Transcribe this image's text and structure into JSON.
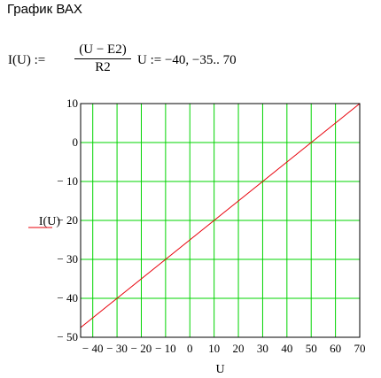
{
  "heading": "График ВАХ",
  "formula": {
    "lhs": "I(U) :=",
    "numerator": "(U − E2)",
    "denominator": "R2",
    "range": "U := −40, −35.. 70"
  },
  "chart_data": {
    "type": "line",
    "xlabel": "U",
    "ylabel": "I(U)",
    "xlim": [
      -45,
      70
    ],
    "ylim": [
      -50,
      10
    ],
    "x_ticks": [
      -40,
      -30,
      -20,
      -10,
      0,
      10,
      20,
      30,
      40,
      50,
      60,
      70
    ],
    "y_ticks": [
      -50,
      -40,
      -30,
      -20,
      -10,
      0,
      10
    ],
    "x_tick_labels": [
      "− 40",
      "− 30",
      "− 20",
      "− 10",
      "0",
      "10",
      "20",
      "30",
      "40",
      "50",
      "60",
      "70"
    ],
    "y_tick_labels": [
      "− 50",
      "− 40",
      "− 30",
      "− 20",
      "− 10",
      "0",
      "10"
    ],
    "grid": true,
    "series": [
      {
        "name": "I(U)",
        "x": [
          -45,
          -40,
          -35,
          -30,
          -25,
          -20,
          -15,
          -10,
          -5,
          0,
          5,
          10,
          15,
          20,
          25,
          30,
          35,
          40,
          45,
          50,
          55,
          60,
          65,
          70
        ],
        "y": [
          -47.5,
          -45,
          -42.5,
          -40,
          -37.5,
          -35,
          -32.5,
          -30,
          -27.5,
          -25,
          -22.5,
          -20,
          -17.5,
          -15,
          -12.5,
          -10,
          -7.5,
          -5,
          -2.5,
          0,
          2.5,
          5,
          7.5,
          10
        ]
      }
    ],
    "colors": {
      "series": "#e8000a",
      "grid": "#00d400",
      "frame": "#000000"
    }
  }
}
